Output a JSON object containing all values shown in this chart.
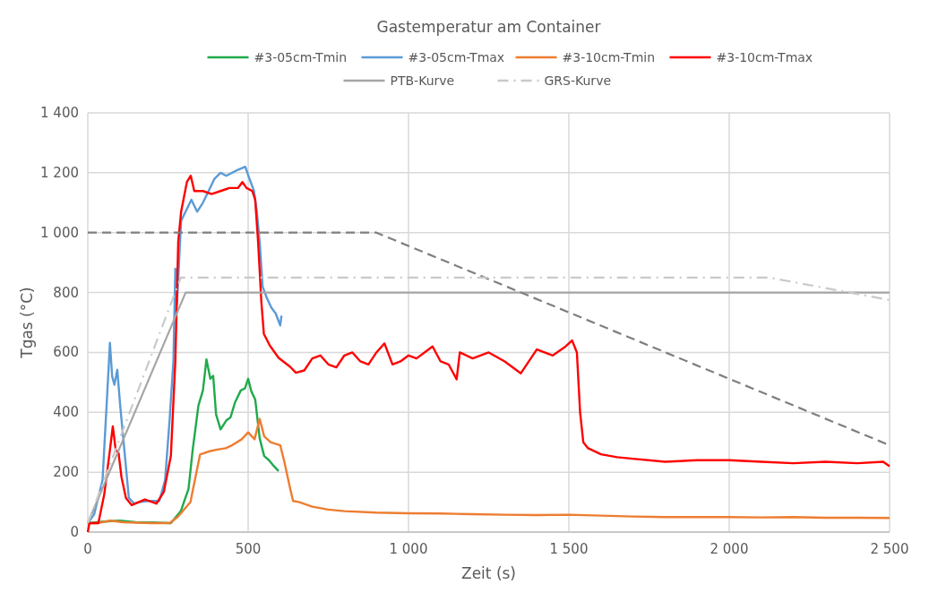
{
  "chart_data": {
    "type": "line",
    "title": "Gastemperatur am Container",
    "xlabel": "Zeit (s)",
    "ylabel": "Tgas (°C)",
    "xlim": [
      0,
      2500
    ],
    "ylim": [
      0,
      1400
    ],
    "xticks": [
      0,
      500,
      {
        "value": 1000,
        "label": "1 000"
      },
      {
        "value": 1500,
        "label": "1 500"
      },
      {
        "value": 2000,
        "label": "2 000"
      },
      {
        "value": 2500,
        "label": "2 500"
      }
    ],
    "yticks": [
      0,
      200,
      400,
      600,
      800,
      {
        "value": 1000,
        "label": "1 000"
      },
      {
        "value": 1200,
        "label": "1 200"
      },
      {
        "value": 1400,
        "label": "1 400"
      }
    ],
    "grid": true,
    "legend": "top",
    "series": [
      {
        "name": "#3-05cm-Tmin",
        "color": "#1faa4b",
        "line_style": "solid",
        "x": [
          0,
          50,
          100,
          150,
          200,
          259,
          290,
          314,
          327,
          345,
          359,
          370,
          382,
          391,
          400,
          414,
          432,
          445,
          459,
          477,
          490,
          500,
          510,
          522,
          536,
          550,
          565,
          577,
          595
        ],
        "values": [
          30,
          35,
          38,
          33,
          32,
          30,
          70,
          144,
          274,
          423,
          473,
          577,
          512,
          522,
          393,
          343,
          373,
          383,
          433,
          473,
          480,
          512,
          470,
          443,
          313,
          254,
          240,
          224,
          204
        ]
      },
      {
        "name": "#3-05cm-Tmax",
        "color": "#5b9bd5",
        "line_style": "solid",
        "x": [
          0,
          20,
          46,
          60,
          69,
          76,
          83,
          92,
          101,
          114,
          128,
          145,
          160,
          187,
          223,
          241,
          255,
          267,
          273,
          278,
          291,
          305,
          323,
          341,
          359,
          377,
          395,
          414,
          432,
          450,
          468,
          491,
          504,
          518,
          527,
          536,
          545,
          559,
          572,
          586,
          600,
          604
        ],
        "values": [
          30,
          60,
          174,
          450,
          632,
          520,
          492,
          542,
          423,
          274,
          114,
          95,
          100,
          104,
          104,
          174,
          373,
          572,
          880,
          760,
          1040,
          1070,
          1110,
          1070,
          1100,
          1140,
          1180,
          1200,
          1190,
          1200,
          1210,
          1220,
          1180,
          1140,
          1070,
          970,
          820,
          780,
          750,
          730,
          690,
          723
        ]
      },
      {
        "name": "#3-10cm-Tmin",
        "color": "#ed7d31",
        "line_style": "solid",
        "x": [
          0,
          30,
          70,
          110,
          200,
          255,
          280,
          320,
          350,
          380,
          400,
          430,
          450,
          480,
          500,
          520,
          536,
          550,
          570,
          600,
          613,
          630,
          640,
          660,
          700,
          750,
          800,
          900,
          1000,
          1100,
          1200,
          1300,
          1400,
          1500,
          1600,
          1700,
          1800,
          1900,
          2000,
          2100,
          2200,
          2300,
          2400,
          2500
        ],
        "values": [
          30,
          30,
          38,
          33,
          30,
          30,
          50,
          100,
          259,
          270,
          275,
          280,
          290,
          310,
          333,
          310,
          378,
          320,
          300,
          290,
          234,
          150,
          104,
          100,
          85,
          75,
          70,
          65,
          63,
          62,
          60,
          58,
          57,
          58,
          55,
          52,
          50,
          50,
          50,
          49,
          50,
          48,
          48,
          47
        ]
      },
      {
        "name": "#3-10cm-Tmax",
        "color": "#ff0000",
        "line_style": "solid",
        "x": [
          0,
          5,
          33,
          51,
          69,
          78,
          87,
          96,
          105,
          119,
          137,
          178,
          214,
          237,
          259,
          273,
          282,
          291,
          309,
          321,
          332,
          359,
          386,
          414,
          441,
          468,
          482,
          495,
          513,
          522,
          531,
          541,
          549,
          568,
          595,
          631,
          649,
          675,
          700,
          725,
          750,
          775,
          800,
          825,
          850,
          875,
          900,
          925,
          950,
          975,
          1000,
          1025,
          1050,
          1075,
          1100,
          1125,
          1150,
          1160,
          1200,
          1250,
          1300,
          1350,
          1400,
          1450,
          1490,
          1510,
          1525,
          1535,
          1545,
          1560,
          1600,
          1650,
          1700,
          1800,
          1900,
          2000,
          2100,
          2200,
          2300,
          2400,
          2480,
          2500
        ],
        "values": [
          0,
          30,
          30,
          124,
          274,
          353,
          274,
          264,
          184,
          114,
          90,
          109,
          95,
          134,
          254,
          572,
          970,
          1070,
          1169,
          1190,
          1139,
          1139,
          1129,
          1139,
          1149,
          1149,
          1169,
          1149,
          1139,
          1110,
          970,
          771,
          662,
          622,
          582,
          552,
          532,
          540,
          580,
          590,
          560,
          550,
          590,
          600,
          570,
          560,
          600,
          630,
          560,
          570,
          590,
          580,
          600,
          620,
          570,
          560,
          510,
          600,
          580,
          600,
          570,
          530,
          610,
          590,
          620,
          640,
          600,
          400,
          300,
          280,
          260,
          250,
          245,
          235,
          240,
          240,
          235,
          230,
          235,
          230,
          235,
          220
        ]
      },
      {
        "name": "PTB-Kurve",
        "color": "#a5a5a5",
        "line_style": "solid",
        "x": [
          0,
          305,
          2500
        ],
        "values": [
          30,
          800,
          800
        ]
      },
      {
        "color": "#7f7f7f",
        "line_style": "dashed",
        "x": [
          0,
          900,
          2500
        ],
        "values": [
          1000,
          1000,
          290
        ]
      },
      {
        "name": "GRS-Kurve",
        "color": "#c9c9c9",
        "line_style": "dashdot",
        "x": [
          0,
          290,
          2125,
          2500
        ],
        "values": [
          30,
          850,
          850,
          775
        ]
      }
    ]
  }
}
